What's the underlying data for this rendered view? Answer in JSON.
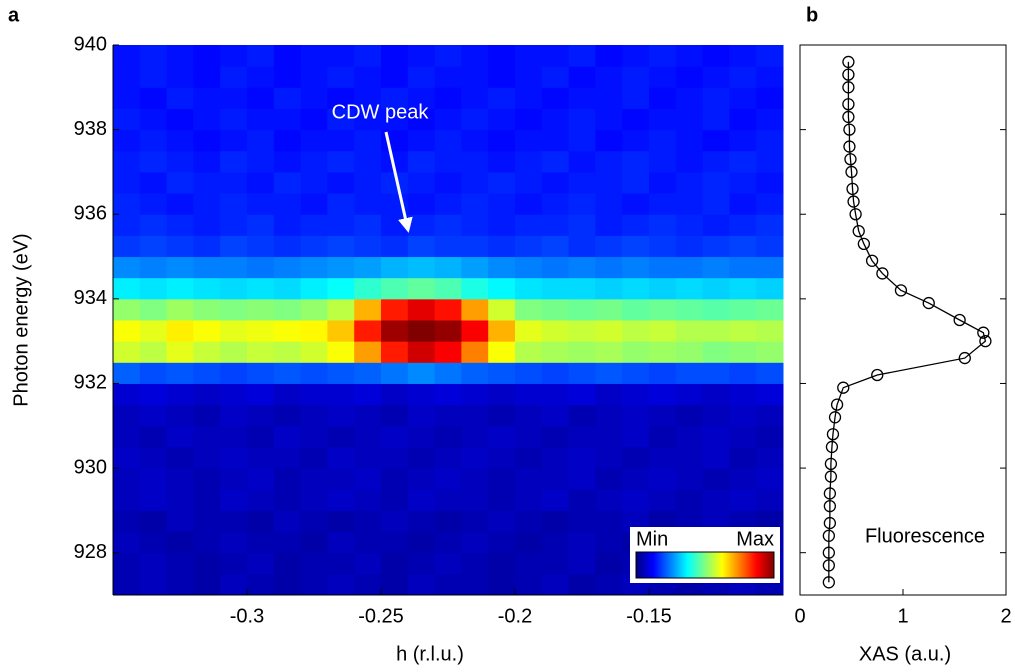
{
  "chart_data": [
    {
      "type": "heatmap",
      "panel_label": "a",
      "xlabel": "h (r.l.u.)",
      "ylabel": "Photon energy (eV)",
      "annotation": "CDW peak",
      "colorbar_labels": [
        "Min",
        "Max"
      ],
      "colormap": "jet",
      "zlim": [
        0,
        1
      ],
      "xlim": [
        -0.35,
        -0.1
      ],
      "ylim": [
        927,
        940
      ],
      "xticks": [
        -0.3,
        -0.25,
        -0.2,
        -0.15
      ],
      "yticks": [
        928,
        930,
        932,
        934,
        936,
        938,
        940
      ],
      "x": [
        -0.345,
        -0.335,
        -0.325,
        -0.315,
        -0.305,
        -0.295,
        -0.285,
        -0.275,
        -0.265,
        -0.255,
        -0.245,
        -0.235,
        -0.225,
        -0.215,
        -0.205,
        -0.195,
        -0.185,
        -0.175,
        -0.165,
        -0.155,
        -0.145,
        -0.135,
        -0.125,
        -0.115,
        -0.105
      ],
      "y": [
        927.25,
        927.75,
        928.25,
        928.75,
        929.25,
        929.75,
        930.25,
        930.75,
        931.25,
        931.75,
        932.25,
        932.75,
        933.25,
        933.75,
        934.25,
        934.75,
        935.25,
        935.75,
        936.25,
        936.75,
        937.25,
        937.75,
        938.25,
        938.75,
        939.25,
        939.75
      ],
      "z": [
        [
          0.05,
          0.06,
          0.05,
          0.04,
          0.06,
          0.05,
          0.04,
          0.05,
          0.06,
          0.05,
          0.04,
          0.06,
          0.05,
          0.05,
          0.04,
          0.05,
          0.06,
          0.04,
          0.05,
          0.06,
          0.05,
          0.04,
          0.05,
          0.06,
          0.05
        ],
        [
          0.05,
          0.06,
          0.05,
          0.04,
          0.05,
          0.06,
          0.04,
          0.05,
          0.05,
          0.06,
          0.04,
          0.05,
          0.06,
          0.05,
          0.04,
          0.05,
          0.05,
          0.06,
          0.04,
          0.05,
          0.06,
          0.05,
          0.04,
          0.05,
          0.06
        ],
        [
          0.06,
          0.05,
          0.04,
          0.05,
          0.06,
          0.05,
          0.05,
          0.04,
          0.06,
          0.05,
          0.05,
          0.04,
          0.05,
          0.06,
          0.05,
          0.04,
          0.05,
          0.06,
          0.05,
          0.04,
          0.05,
          0.05,
          0.06,
          0.04,
          0.05
        ],
        [
          0.05,
          0.04,
          0.06,
          0.05,
          0.05,
          0.04,
          0.06,
          0.05,
          0.04,
          0.05,
          0.06,
          0.05,
          0.04,
          0.05,
          0.06,
          0.05,
          0.04,
          0.05,
          0.05,
          0.06,
          0.04,
          0.05,
          0.06,
          0.05,
          0.04
        ],
        [
          0.06,
          0.07,
          0.06,
          0.05,
          0.07,
          0.06,
          0.05,
          0.06,
          0.07,
          0.06,
          0.05,
          0.07,
          0.06,
          0.06,
          0.05,
          0.06,
          0.07,
          0.05,
          0.06,
          0.07,
          0.06,
          0.05,
          0.06,
          0.07,
          0.06
        ],
        [
          0.06,
          0.07,
          0.06,
          0.05,
          0.06,
          0.07,
          0.05,
          0.06,
          0.06,
          0.07,
          0.05,
          0.06,
          0.07,
          0.06,
          0.05,
          0.06,
          0.06,
          0.07,
          0.05,
          0.06,
          0.07,
          0.06,
          0.05,
          0.06,
          0.07
        ],
        [
          0.07,
          0.06,
          0.05,
          0.06,
          0.07,
          0.06,
          0.06,
          0.05,
          0.07,
          0.06,
          0.06,
          0.05,
          0.06,
          0.07,
          0.06,
          0.05,
          0.06,
          0.07,
          0.06,
          0.05,
          0.06,
          0.06,
          0.07,
          0.05,
          0.06
        ],
        [
          0.06,
          0.05,
          0.07,
          0.06,
          0.06,
          0.05,
          0.07,
          0.06,
          0.05,
          0.06,
          0.07,
          0.06,
          0.05,
          0.06,
          0.07,
          0.06,
          0.05,
          0.06,
          0.06,
          0.07,
          0.05,
          0.06,
          0.07,
          0.06,
          0.05
        ],
        [
          0.06,
          0.07,
          0.06,
          0.05,
          0.07,
          0.06,
          0.05,
          0.06,
          0.07,
          0.06,
          0.05,
          0.07,
          0.06,
          0.06,
          0.05,
          0.06,
          0.07,
          0.05,
          0.06,
          0.07,
          0.06,
          0.05,
          0.06,
          0.07,
          0.06
        ],
        [
          0.08,
          0.09,
          0.08,
          0.07,
          0.08,
          0.09,
          0.07,
          0.08,
          0.08,
          0.09,
          0.07,
          0.08,
          0.09,
          0.08,
          0.07,
          0.08,
          0.08,
          0.09,
          0.07,
          0.08,
          0.09,
          0.08,
          0.07,
          0.08,
          0.09
        ],
        [
          0.22,
          0.2,
          0.21,
          0.2,
          0.19,
          0.2,
          0.21,
          0.2,
          0.21,
          0.22,
          0.24,
          0.26,
          0.24,
          0.22,
          0.21,
          0.2,
          0.19,
          0.2,
          0.21,
          0.2,
          0.19,
          0.2,
          0.2,
          0.19,
          0.2
        ],
        [
          0.58,
          0.56,
          0.6,
          0.57,
          0.55,
          0.57,
          0.56,
          0.58,
          0.62,
          0.72,
          0.85,
          0.92,
          0.88,
          0.75,
          0.62,
          0.55,
          0.54,
          0.53,
          0.54,
          0.52,
          0.53,
          0.52,
          0.5,
          0.51,
          0.52
        ],
        [
          0.62,
          0.6,
          0.64,
          0.62,
          0.6,
          0.61,
          0.62,
          0.63,
          0.68,
          0.85,
          0.97,
          1.0,
          0.98,
          0.88,
          0.7,
          0.6,
          0.58,
          0.57,
          0.58,
          0.56,
          0.57,
          0.55,
          0.55,
          0.56,
          0.55
        ],
        [
          0.52,
          0.5,
          0.53,
          0.51,
          0.5,
          0.51,
          0.5,
          0.52,
          0.56,
          0.7,
          0.85,
          0.9,
          0.86,
          0.72,
          0.58,
          0.5,
          0.49,
          0.48,
          0.49,
          0.47,
          0.48,
          0.47,
          0.46,
          0.47,
          0.48
        ],
        [
          0.36,
          0.35,
          0.36,
          0.35,
          0.34,
          0.35,
          0.34,
          0.36,
          0.38,
          0.42,
          0.45,
          0.47,
          0.45,
          0.4,
          0.37,
          0.35,
          0.34,
          0.34,
          0.33,
          0.34,
          0.33,
          0.34,
          0.33,
          0.34,
          0.33
        ],
        [
          0.26,
          0.25,
          0.26,
          0.25,
          0.25,
          0.24,
          0.25,
          0.26,
          0.27,
          0.28,
          0.3,
          0.31,
          0.3,
          0.28,
          0.26,
          0.25,
          0.24,
          0.25,
          0.24,
          0.25,
          0.24,
          0.24,
          0.25,
          0.24,
          0.24
        ],
        [
          0.18,
          0.19,
          0.18,
          0.17,
          0.19,
          0.18,
          0.17,
          0.18,
          0.19,
          0.18,
          0.17,
          0.19,
          0.18,
          0.18,
          0.17,
          0.18,
          0.19,
          0.17,
          0.18,
          0.19,
          0.18,
          0.17,
          0.18,
          0.19,
          0.18
        ],
        [
          0.16,
          0.17,
          0.16,
          0.15,
          0.16,
          0.17,
          0.15,
          0.16,
          0.16,
          0.17,
          0.15,
          0.16,
          0.17,
          0.16,
          0.15,
          0.16,
          0.16,
          0.17,
          0.15,
          0.16,
          0.17,
          0.16,
          0.15,
          0.16,
          0.17
        ],
        [
          0.16,
          0.15,
          0.14,
          0.15,
          0.16,
          0.15,
          0.15,
          0.14,
          0.16,
          0.15,
          0.15,
          0.14,
          0.15,
          0.16,
          0.15,
          0.14,
          0.15,
          0.16,
          0.15,
          0.14,
          0.15,
          0.15,
          0.16,
          0.14,
          0.15
        ],
        [
          0.15,
          0.14,
          0.16,
          0.15,
          0.15,
          0.14,
          0.16,
          0.15,
          0.14,
          0.15,
          0.16,
          0.15,
          0.14,
          0.15,
          0.16,
          0.15,
          0.14,
          0.15,
          0.15,
          0.16,
          0.14,
          0.15,
          0.16,
          0.15,
          0.14
        ],
        [
          0.15,
          0.16,
          0.15,
          0.14,
          0.16,
          0.15,
          0.14,
          0.15,
          0.16,
          0.15,
          0.14,
          0.16,
          0.15,
          0.15,
          0.14,
          0.15,
          0.16,
          0.14,
          0.15,
          0.16,
          0.15,
          0.14,
          0.15,
          0.16,
          0.15
        ],
        [
          0.14,
          0.15,
          0.14,
          0.13,
          0.14,
          0.15,
          0.13,
          0.14,
          0.14,
          0.15,
          0.13,
          0.14,
          0.15,
          0.14,
          0.13,
          0.14,
          0.14,
          0.15,
          0.13,
          0.14,
          0.15,
          0.14,
          0.13,
          0.14,
          0.15
        ],
        [
          0.15,
          0.14,
          0.13,
          0.14,
          0.15,
          0.14,
          0.14,
          0.13,
          0.15,
          0.14,
          0.14,
          0.13,
          0.14,
          0.15,
          0.14,
          0.13,
          0.14,
          0.15,
          0.14,
          0.13,
          0.14,
          0.14,
          0.15,
          0.13,
          0.14
        ],
        [
          0.14,
          0.13,
          0.15,
          0.14,
          0.14,
          0.13,
          0.15,
          0.14,
          0.13,
          0.14,
          0.15,
          0.14,
          0.13,
          0.14,
          0.15,
          0.14,
          0.13,
          0.14,
          0.14,
          0.15,
          0.13,
          0.14,
          0.15,
          0.14,
          0.13
        ],
        [
          0.14,
          0.15,
          0.14,
          0.13,
          0.15,
          0.14,
          0.13,
          0.14,
          0.15,
          0.14,
          0.13,
          0.15,
          0.14,
          0.14,
          0.13,
          0.14,
          0.15,
          0.13,
          0.14,
          0.15,
          0.14,
          0.13,
          0.14,
          0.15,
          0.14
        ],
        [
          0.14,
          0.15,
          0.14,
          0.13,
          0.14,
          0.15,
          0.13,
          0.14,
          0.14,
          0.15,
          0.13,
          0.14,
          0.15,
          0.14,
          0.13,
          0.14,
          0.14,
          0.15,
          0.13,
          0.14,
          0.15,
          0.14,
          0.13,
          0.14,
          0.15
        ]
      ]
    },
    {
      "type": "line",
      "panel_label": "b",
      "xlabel": "XAS (a.u.)",
      "annotation": "Fluorescence",
      "xlim": [
        0,
        2
      ],
      "ylim": [
        927,
        940
      ],
      "xticks": [
        0,
        1,
        2
      ],
      "yticks": [
        928,
        930,
        932,
        934,
        936,
        938,
        940
      ],
      "series": [
        {
          "color": "#000000",
          "energies": [
            939.6,
            939.3,
            939.0,
            938.6,
            938.3,
            938.0,
            937.6,
            937.3,
            937.0,
            936.6,
            936.3,
            936.0,
            935.6,
            935.3,
            934.9,
            934.6,
            934.2,
            933.9,
            933.5,
            933.2,
            933.0,
            932.6,
            932.2,
            931.9,
            931.5,
            931.2,
            930.8,
            930.5,
            930.1,
            929.8,
            929.4,
            929.1,
            928.7,
            928.4,
            928.0,
            927.7,
            927.3
          ],
          "values": [
            0.47,
            0.47,
            0.47,
            0.47,
            0.47,
            0.48,
            0.48,
            0.49,
            0.5,
            0.51,
            0.52,
            0.54,
            0.57,
            0.62,
            0.7,
            0.8,
            0.98,
            1.25,
            1.55,
            1.78,
            1.8,
            1.6,
            0.75,
            0.42,
            0.36,
            0.34,
            0.32,
            0.31,
            0.3,
            0.3,
            0.29,
            0.29,
            0.29,
            0.28,
            0.28,
            0.28,
            0.28
          ]
        }
      ]
    }
  ]
}
